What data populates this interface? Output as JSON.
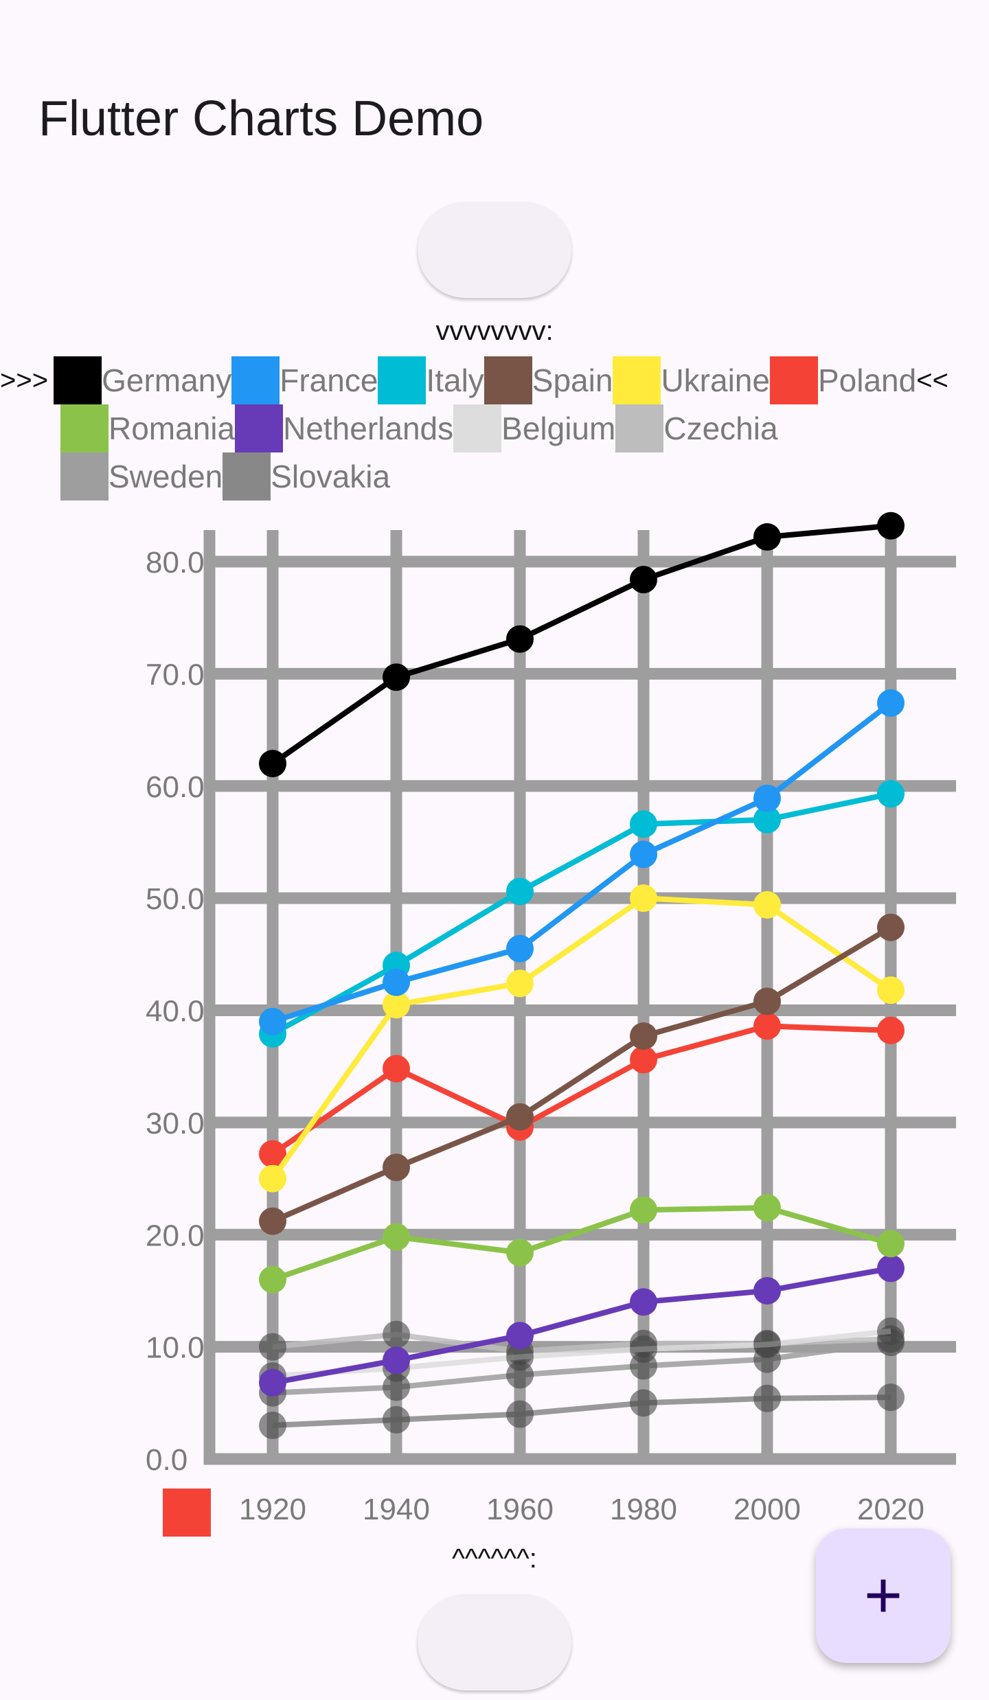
{
  "app": {
    "title": "Flutter Charts Demo"
  },
  "markers": {
    "top": "vvvvvvvv:",
    "bottom": "^^^^^^:"
  },
  "legend": {
    "prefix": ">>>",
    "suffix": "<<"
  },
  "fab": {
    "icon": "plus-icon",
    "label": "+"
  },
  "chart_data": {
    "type": "line",
    "title": "",
    "xlabel": "",
    "ylabel": "",
    "categories": [
      "1920",
      "1940",
      "1960",
      "1980",
      "2000",
      "2020"
    ],
    "ylim": [
      0,
      80
    ],
    "yticks": [
      "0.0",
      "10.0",
      "20.0",
      "30.0",
      "40.0",
      "50.0",
      "60.0",
      "70.0",
      "80.0"
    ],
    "grid": true,
    "legend_position": "top",
    "series": [
      {
        "name": "Germany",
        "color": "#000000",
        "values": [
          62.0,
          69.7,
          73.1,
          78.4,
          82.2,
          83.2
        ]
      },
      {
        "name": "France",
        "color": "#2196f3",
        "values": [
          39.0,
          42.5,
          45.5,
          53.9,
          58.9,
          67.4
        ]
      },
      {
        "name": "Italy",
        "color": "#00bcd4",
        "values": [
          37.9,
          44.0,
          50.6,
          56.6,
          57.0,
          59.3
        ]
      },
      {
        "name": "Spain",
        "color": "#795548",
        "values": [
          21.2,
          26.0,
          30.5,
          37.7,
          40.8,
          47.4
        ]
      },
      {
        "name": "Ukraine",
        "color": "#ffeb3b",
        "values": [
          25.0,
          40.5,
          42.4,
          50.0,
          49.4,
          41.8
        ]
      },
      {
        "name": "Poland",
        "color": "#f44336",
        "values": [
          27.2,
          34.8,
          29.6,
          35.6,
          38.6,
          38.2
        ]
      },
      {
        "name": "Romania",
        "color": "#8bc34a",
        "values": [
          16.0,
          19.8,
          18.4,
          22.2,
          22.4,
          19.2
        ]
      },
      {
        "name": "Netherlands",
        "color": "#673ab7",
        "values": [
          6.8,
          8.8,
          11.0,
          14.0,
          15.0,
          17.0
        ]
      },
      {
        "name": "Belgium",
        "color": "#dddddd",
        "values": [
          7.4,
          8.1,
          9.1,
          9.8,
          10.2,
          11.4
        ]
      },
      {
        "name": "Czechia",
        "color": "#bdbdbd",
        "values": [
          10.0,
          11.1,
          9.6,
          10.3,
          10.3,
          10.7
        ]
      },
      {
        "name": "Sweden",
        "color": "#9e9e9e",
        "values": [
          5.9,
          6.4,
          7.5,
          8.3,
          8.9,
          10.4
        ]
      },
      {
        "name": "Slovakia",
        "color": "#888888",
        "values": [
          3.0,
          3.5,
          4.0,
          5.0,
          5.4,
          5.5
        ]
      }
    ],
    "extra_legend_color": "#f44336"
  }
}
